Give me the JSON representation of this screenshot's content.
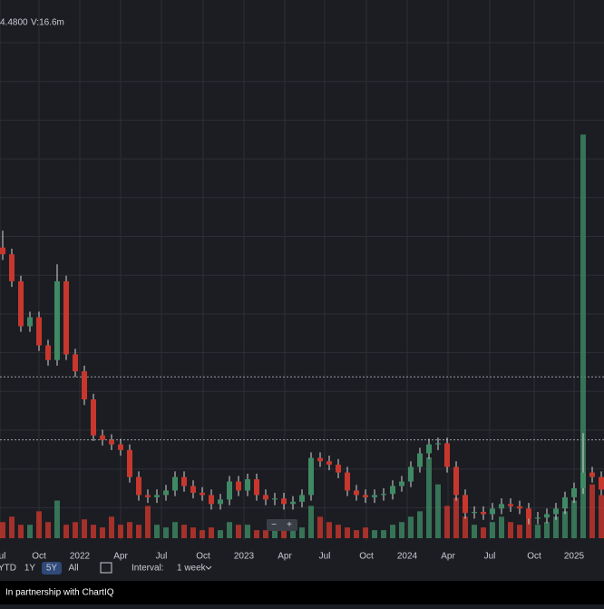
{
  "chart_data": {
    "type": "candlestick",
    "header": {
      "last": "4.4800",
      "volume": "V:16.6m"
    },
    "open": [
      26,
      25.4,
      23,
      19,
      19.8,
      17.3,
      16,
      23,
      16.5,
      15,
      12.5,
      9.3,
      8.9,
      8.5,
      8,
      5.6,
      4,
      3.8,
      4,
      4.4,
      5.6,
      4.8,
      4.2,
      4,
      3.2,
      3.6,
      5.2,
      4.4,
      5.4,
      4,
      3.6,
      3.7,
      3.2,
      3.4,
      4,
      7.3,
      7,
      6.7,
      6,
      4.4,
      4,
      3.8,
      4,
      4.1,
      4.8,
      5.2,
      6.5,
      7.7,
      8.5,
      8.6,
      6.5,
      4,
      2.4,
      2.5,
      2.3,
      2.8,
      3.2,
      3,
      2.8,
      1.9,
      2,
      2.3,
      2.8,
      3.8,
      4.6,
      6,
      5.6
    ],
    "close": [
      25.4,
      23,
      19,
      19.8,
      17.3,
      16,
      23,
      16.5,
      15,
      12.5,
      9.3,
      8.9,
      8.5,
      8,
      5.6,
      4,
      3.8,
      4,
      4.4,
      5.6,
      4.8,
      4.2,
      4,
      3.2,
      3.6,
      5.2,
      4.4,
      5.4,
      4,
      3.6,
      3.7,
      3.2,
      3.4,
      4,
      7.3,
      7,
      6.7,
      6,
      4.4,
      4,
      3.8,
      4,
      4.1,
      4.8,
      5.2,
      6.5,
      7.7,
      8.5,
      8.6,
      6.5,
      4,
      2.4,
      2.5,
      2.3,
      2.8,
      3.2,
      3,
      2.8,
      1.9,
      2,
      2.3,
      2.8,
      3.8,
      4.6,
      6,
      5.6,
      4.48
    ],
    "high": [
      27.5,
      25.9,
      23.5,
      20.3,
      20.3,
      17.8,
      24.5,
      23.5,
      17,
      15.5,
      13,
      9.8,
      9.4,
      9,
      8.5,
      6.1,
      4.5,
      4.5,
      4.9,
      6.1,
      6.1,
      5.3,
      4.7,
      4.5,
      4.1,
      5.7,
      5.7,
      5.9,
      5.9,
      4.5,
      4.2,
      4.2,
      3.9,
      4.5,
      7.8,
      7.8,
      7.5,
      7.2,
      6.5,
      4.9,
      4.5,
      4.5,
      4.6,
      5.3,
      5.7,
      7,
      8.2,
      9,
      9.1,
      9.1,
      7,
      4.5,
      3,
      3,
      3.3,
      3.7,
      3.7,
      3.5,
      3.3,
      2.5,
      2.8,
      3.3,
      4.3,
      5.1,
      9.5,
      6.5,
      6.1
    ],
    "low": [
      24.9,
      22.5,
      18.5,
      18.5,
      16.8,
      15.5,
      15.5,
      16,
      14.5,
      12,
      8.8,
      8.4,
      8,
      7.5,
      5.1,
      3.5,
      3.3,
      3.3,
      3.5,
      3.9,
      4.3,
      3.7,
      3.5,
      2.7,
      2.7,
      3.1,
      3.9,
      3.9,
      3.5,
      3.1,
      3.1,
      2.7,
      2.7,
      2.9,
      3.5,
      6.5,
      6.2,
      5.5,
      3.9,
      3.5,
      3.3,
      3.3,
      3.5,
      3.6,
      4.3,
      4.7,
      6,
      7.2,
      8,
      6,
      3.5,
      1.9,
      1.9,
      1.8,
      1.8,
      2.3,
      2.5,
      2.3,
      1.4,
      1.4,
      1.5,
      1.8,
      2.3,
      3.3,
      4.1,
      5.1,
      3.98
    ],
    "volume": [
      6,
      8,
      5,
      5,
      10,
      6,
      14,
      5,
      6,
      7,
      5,
      4,
      8,
      5,
      6,
      5,
      12,
      5,
      4,
      6,
      5,
      4,
      3,
      4,
      3,
      6,
      5,
      5,
      3,
      3,
      4,
      3,
      3,
      4,
      12,
      8,
      6,
      5,
      4,
      3,
      4,
      3,
      3,
      5,
      6,
      8,
      10,
      30,
      20,
      12,
      15,
      8,
      5,
      4,
      6,
      8,
      6,
      5,
      10,
      5,
      6,
      8,
      10,
      14,
      150,
      20,
      16
    ],
    "up_color": "#3f8a64",
    "down_color": "#c8372d",
    "ylim": [
      0,
      48
    ],
    "volume_lim": [
      0,
      200
    ],
    "reference_lines": [
      14.5,
      8.9
    ],
    "xticks": [
      {
        "value": -0.3,
        "label": "Jul"
      },
      {
        "value": 4,
        "label": "Oct"
      },
      {
        "value": 8.5,
        "label": "2022"
      },
      {
        "value": 13,
        "label": "Apr"
      },
      {
        "value": 17.5,
        "label": "Jul"
      },
      {
        "value": 22.1,
        "label": "Oct"
      },
      {
        "value": 26.6,
        "label": "2023"
      },
      {
        "value": 31.1,
        "label": "Apr"
      },
      {
        "value": 35.5,
        "label": "Jul"
      },
      {
        "value": 40.1,
        "label": "Oct"
      },
      {
        "value": 44.6,
        "label": "2024"
      },
      {
        "value": 49.1,
        "label": "Apr"
      },
      {
        "value": 53.7,
        "label": "Jul"
      },
      {
        "value": 58.6,
        "label": "Oct"
      },
      {
        "value": 63,
        "label": "2025"
      }
    ],
    "ranges": [
      "YTD",
      "1Y",
      "5Y",
      "All"
    ],
    "active_range": "5Y",
    "interval_label": "Interval:",
    "interval": "1 week",
    "zoom_out": "−",
    "zoom_in": "+",
    "footer": "In partnership with ChartIQ"
  }
}
